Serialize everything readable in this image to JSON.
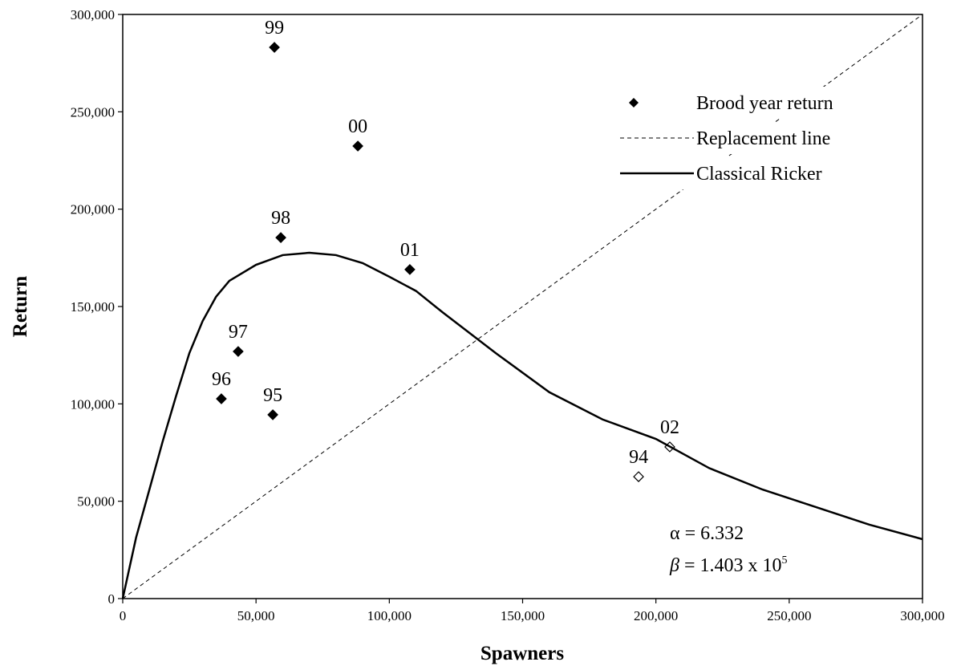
{
  "chart_data": {
    "type": "scatter",
    "x_label": "Spawners",
    "y_label": "Return",
    "xlim": [
      0,
      300000
    ],
    "ylim": [
      0,
      300000
    ],
    "xticks": [
      0,
      {
        "value": 50000,
        "label": "50,000"
      },
      {
        "value": 100000,
        "label": "100,000"
      },
      {
        "value": 150000,
        "label": "150,000"
      },
      {
        "value": 200000,
        "label": "200,000"
      },
      {
        "value": 250000,
        "label": "250,000"
      },
      {
        "value": 300000,
        "label": "300,000"
      }
    ],
    "yticks": [
      0,
      {
        "value": 50000,
        "label": "50,000"
      },
      {
        "value": 100000,
        "label": "100,000"
      },
      {
        "value": 150000,
        "label": "150,000"
      },
      {
        "value": 200000,
        "label": "200,000"
      },
      {
        "value": 250000,
        "label": "250,000"
      },
      {
        "value": 300000,
        "label": "300,000"
      }
    ],
    "grid": false,
    "legend": "upper right",
    "series": [
      {
        "name": "Brood year return",
        "type": "scatter",
        "color": "#000000",
        "labels": [
          "94",
          "95",
          "96",
          "97",
          "98",
          "99",
          "00",
          "01",
          "02"
        ],
        "x": [
          193500,
          56300,
          37000,
          43300,
          59300,
          56900,
          88200,
          107700,
          205200
        ],
        "values": [
          62600,
          94400,
          102600,
          126900,
          185400,
          283100,
          232400,
          169000,
          77900
        ],
        "hollow": [
          true,
          false,
          false,
          false,
          false,
          false,
          false,
          false,
          true
        ]
      },
      {
        "name": "Replacement line",
        "type": "line",
        "color": "#000000",
        "dashed": true,
        "x": [
          0,
          300000
        ],
        "values": [
          0,
          300000
        ]
      },
      {
        "name": "Classical Ricker",
        "type": "line",
        "color": "#000000",
        "dashed": false,
        "x": [
          0,
          5000,
          10000,
          15000,
          20000,
          25000,
          30000,
          35000,
          40000,
          50000,
          60000,
          70000,
          80000,
          90000,
          100000,
          110000,
          120000,
          140000,
          160000,
          180000,
          200000,
          220000,
          240000,
          260000,
          280000,
          300000
        ],
        "values": [
          0,
          31300,
          56000,
          80800,
          104000,
          126100,
          142600,
          155000,
          163200,
          171400,
          176400,
          177600,
          176400,
          172300,
          165300,
          158000,
          147000,
          126000,
          106000,
          92000,
          82000,
          67000,
          56000,
          47000,
          38000,
          30500
        ]
      }
    ],
    "annotations": [
      {
        "text": "α = 6.332"
      },
      {
        "text": " = 1.403 x 10",
        "symbol": "β",
        "sup": "5"
      }
    ]
  }
}
